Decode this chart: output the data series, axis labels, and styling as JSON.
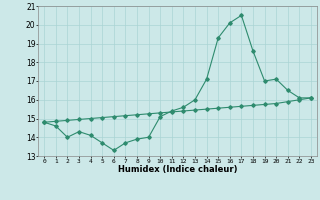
{
  "title": "",
  "xlabel": "Humidex (Indice chaleur)",
  "x_values": [
    0,
    1,
    2,
    3,
    4,
    5,
    6,
    7,
    8,
    9,
    10,
    11,
    12,
    13,
    14,
    15,
    16,
    17,
    18,
    19,
    20,
    21,
    22,
    23
  ],
  "y_curve": [
    14.8,
    14.6,
    14.0,
    14.3,
    14.1,
    13.7,
    13.3,
    13.7,
    13.9,
    14.0,
    15.1,
    15.4,
    15.6,
    16.0,
    17.1,
    19.3,
    20.1,
    20.5,
    18.6,
    17.0,
    17.1,
    16.5,
    16.1,
    16.1
  ],
  "y_line": [
    14.8,
    14.85,
    14.9,
    14.95,
    15.0,
    15.05,
    15.1,
    15.15,
    15.2,
    15.25,
    15.3,
    15.35,
    15.4,
    15.45,
    15.5,
    15.55,
    15.6,
    15.65,
    15.7,
    15.75,
    15.8,
    15.9,
    16.0,
    16.1
  ],
  "line_color": "#2e8b6e",
  "bg_color": "#cce8e8",
  "grid_color": "#aad4d4",
  "ylim": [
    13,
    21
  ],
  "xlim": [
    -0.5,
    23.5
  ],
  "yticks": [
    13,
    14,
    15,
    16,
    17,
    18,
    19,
    20,
    21
  ],
  "xticks": [
    0,
    1,
    2,
    3,
    4,
    5,
    6,
    7,
    8,
    9,
    10,
    11,
    12,
    13,
    14,
    15,
    16,
    17,
    18,
    19,
    20,
    21,
    22,
    23
  ]
}
